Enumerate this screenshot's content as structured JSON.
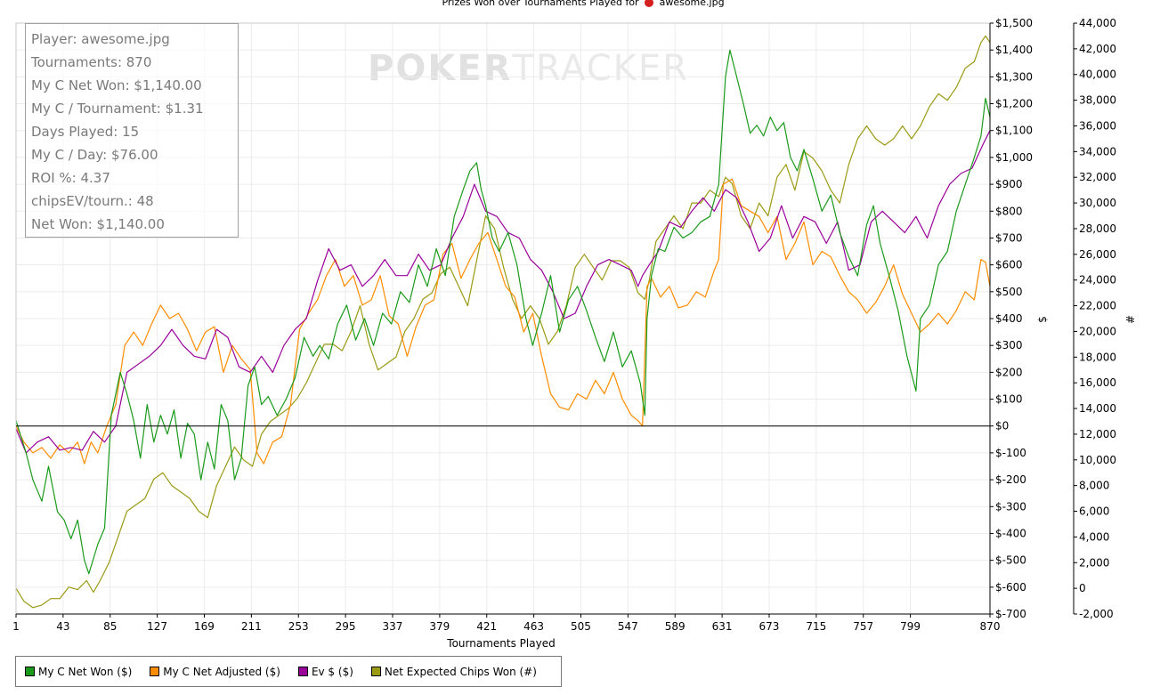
{
  "chart_title_prefix": "Prizes Won over Tournaments Played for",
  "chart_title_player": "awesome.jpg",
  "watermark": {
    "part1": "POKER",
    "part2": "TRACKER"
  },
  "stats": [
    "Player: awesome.jpg",
    "Tournaments: 870",
    "My C Net Won: $1,140.00",
    "My C / Tournament: $1.31",
    "Days Played: 15",
    "My C / Day: $76.00",
    "ROI %: 4.37",
    "chipsEV/tourn.: 48",
    "Net Won: $1,140.00"
  ],
  "legend": [
    {
      "label": "My C Net Won ($)",
      "color": "#1a9a1a"
    },
    {
      "label": "My C Net Adjusted ($)",
      "color": "#ff8c00"
    },
    {
      "label": "Ev $ ($)",
      "color": "#9a009a"
    },
    {
      "label": "Net Expected Chips Won (#)",
      "color": "#9a9a14"
    }
  ],
  "chart_data": {
    "type": "line",
    "title": "Prizes Won over Tournaments Played for awesome.jpg",
    "xlabel": "Tournaments Played",
    "ylabel_left": "$",
    "ylabel_right": "#",
    "xlim": [
      1,
      870
    ],
    "ylim_left": [
      -700,
      1500
    ],
    "ylim_right": [
      -2000,
      44000
    ],
    "x_ticks": [
      1,
      43,
      85,
      127,
      169,
      211,
      253,
      295,
      337,
      379,
      421,
      463,
      505,
      547,
      589,
      631,
      673,
      715,
      757,
      799,
      870
    ],
    "y_ticks_left": [
      -700,
      -600,
      -500,
      -400,
      -300,
      -200,
      -100,
      0,
      100,
      200,
      300,
      400,
      500,
      600,
      700,
      800,
      900,
      1000,
      1100,
      1200,
      1300,
      1400,
      1500
    ],
    "y_tick_labels_left": [
      "$-700",
      "$-600",
      "$-500",
      "$-400",
      "$-300",
      "$-200",
      "$-100",
      "$0",
      "$100",
      "$200",
      "$300",
      "$400",
      "$500",
      "$600",
      "$700",
      "$800",
      "$900",
      "$1,000",
      "$1,100",
      "$1,200",
      "$1,300",
      "$1,400",
      "$1,500"
    ],
    "y_ticks_right": [
      -2000,
      0,
      2000,
      4000,
      6000,
      8000,
      10000,
      12000,
      14000,
      16000,
      18000,
      20000,
      22000,
      24000,
      26000,
      28000,
      30000,
      32000,
      34000,
      36000,
      38000,
      40000,
      42000,
      44000
    ],
    "y_tick_labels_right": [
      "-2,000",
      "0",
      "2,000",
      "4,000",
      "6,000",
      "8,000",
      "10,000",
      "12,000",
      "14,000",
      "16,000",
      "18,000",
      "20,000",
      "22,000",
      "24,000",
      "26,000",
      "28,000",
      "30,000",
      "32,000",
      "34,000",
      "36,000",
      "38,000",
      "40,000",
      "42,000",
      "44,000"
    ],
    "grid": true,
    "legend_position": "bottom-left",
    "series": [
      {
        "name": "My C Net Won ($)",
        "axis": "left",
        "color": "#1a9a1a",
        "x": [
          1,
          10,
          16,
          24,
          30,
          38,
          44,
          50,
          56,
          62,
          66,
          74,
          80,
          86,
          94,
          100,
          106,
          112,
          118,
          124,
          130,
          136,
          142,
          148,
          154,
          160,
          166,
          172,
          178,
          184,
          190,
          196,
          202,
          208,
          214,
          220,
          226,
          234,
          242,
          250,
          258,
          266,
          272,
          280,
          288,
          296,
          304,
          312,
          320,
          328,
          336,
          344,
          352,
          360,
          368,
          376,
          384,
          392,
          400,
          406,
          412,
          416,
          420,
          426,
          432,
          440,
          448,
          456,
          462,
          470,
          478,
          486,
          494,
          502,
          510,
          518,
          526,
          534,
          542,
          550,
          558,
          562,
          564,
          568,
          574,
          580,
          588,
          596,
          604,
          612,
          620,
          628,
          634,
          638,
          644,
          650,
          656,
          662,
          668,
          674,
          680,
          686,
          692,
          698,
          704,
          712,
          720,
          728,
          736,
          744,
          752,
          760,
          766,
          772,
          780,
          788,
          796,
          804,
          808,
          816,
          824,
          832,
          840,
          848,
          856,
          862,
          866,
          870
        ],
        "y": [
          20,
          -100,
          -200,
          -280,
          -150,
          -320,
          -350,
          -420,
          -350,
          -500,
          -550,
          -440,
          -380,
          40,
          200,
          120,
          20,
          -120,
          80,
          -60,
          40,
          -30,
          60,
          -120,
          10,
          -30,
          -200,
          -60,
          -160,
          80,
          20,
          -200,
          -120,
          150,
          220,
          80,
          110,
          40,
          100,
          180,
          330,
          260,
          300,
          250,
          380,
          450,
          320,
          400,
          300,
          420,
          380,
          500,
          460,
          600,
          520,
          660,
          560,
          780,
          880,
          950,
          980,
          880,
          820,
          700,
          650,
          720,
          600,
          400,
          300,
          420,
          560,
          350,
          470,
          520,
          430,
          330,
          240,
          350,
          220,
          280,
          160,
          40,
          400,
          560,
          660,
          650,
          740,
          700,
          720,
          760,
          780,
          900,
          1300,
          1400,
          1300,
          1200,
          1090,
          1120,
          1080,
          1150,
          1100,
          1130,
          1000,
          950,
          1030,
          920,
          800,
          860,
          720,
          630,
          560,
          750,
          820,
          680,
          560,
          430,
          260,
          130,
          400,
          450,
          600,
          650,
          800,
          900,
          1000,
          1080,
          1220,
          1150
        ]
      },
      {
        "name": "My C Net Adjusted ($)",
        "axis": "left",
        "color": "#ff8c00",
        "x": [
          1,
          8,
          16,
          24,
          32,
          40,
          48,
          56,
          62,
          68,
          74,
          82,
          90,
          98,
          106,
          114,
          122,
          130,
          138,
          146,
          154,
          162,
          170,
          178,
          186,
          194,
          202,
          210,
          216,
          222,
          230,
          238,
          246,
          254,
          262,
          270,
          278,
          286,
          294,
          302,
          310,
          318,
          326,
          334,
          342,
          350,
          358,
          366,
          374,
          382,
          390,
          398,
          406,
          414,
          422,
          430,
          438,
          446,
          454,
          462,
          470,
          478,
          486,
          494,
          502,
          510,
          518,
          526,
          534,
          542,
          550,
          556,
          560,
          564,
          568,
          576,
          584,
          592,
          600,
          608,
          616,
          624,
          628,
          632,
          640,
          648,
          656,
          664,
          672,
          680,
          688,
          696,
          704,
          712,
          720,
          728,
          736,
          744,
          752,
          760,
          768,
          776,
          784,
          792,
          800,
          808,
          816,
          824,
          832,
          840,
          848,
          856,
          862,
          866,
          870
        ],
        "y": [
          0,
          -60,
          -100,
          -80,
          -120,
          -70,
          -100,
          -60,
          -140,
          -60,
          -100,
          0,
          80,
          300,
          350,
          300,
          380,
          450,
          400,
          420,
          360,
          280,
          350,
          370,
          200,
          300,
          250,
          210,
          -100,
          -140,
          -60,
          -40,
          80,
          360,
          420,
          470,
          560,
          620,
          520,
          560,
          450,
          470,
          560,
          410,
          380,
          260,
          370,
          450,
          470,
          640,
          680,
          550,
          620,
          680,
          720,
          620,
          520,
          480,
          350,
          420,
          260,
          120,
          70,
          60,
          120,
          100,
          170,
          120,
          200,
          100,
          40,
          20,
          0,
          520,
          550,
          480,
          520,
          440,
          450,
          500,
          480,
          580,
          620,
          900,
          920,
          820,
          800,
          780,
          720,
          780,
          620,
          680,
          760,
          600,
          650,
          630,
          560,
          500,
          470,
          420,
          460,
          520,
          600,
          490,
          420,
          350,
          380,
          420,
          380,
          430,
          500,
          470,
          620,
          610,
          520
        ]
      },
      {
        "name": "Ev $ ($)",
        "axis": "left",
        "color": "#9a009a",
        "x": [
          1,
          10,
          20,
          30,
          40,
          50,
          60,
          70,
          80,
          90,
          100,
          110,
          120,
          130,
          140,
          150,
          160,
          170,
          180,
          190,
          200,
          210,
          220,
          230,
          240,
          250,
          260,
          270,
          280,
          290,
          300,
          310,
          320,
          330,
          340,
          350,
          360,
          370,
          380,
          390,
          400,
          410,
          420,
          430,
          440,
          450,
          460,
          470,
          480,
          490,
          500,
          510,
          520,
          530,
          540,
          550,
          556,
          560,
          566,
          574,
          584,
          594,
          604,
          614,
          624,
          634,
          644,
          654,
          664,
          674,
          684,
          694,
          704,
          714,
          724,
          734,
          744,
          754,
          764,
          774,
          784,
          794,
          804,
          814,
          824,
          834,
          844,
          854,
          864,
          870
        ],
        "y": [
          -10,
          -100,
          -60,
          -40,
          -90,
          -80,
          -90,
          -20,
          -60,
          0,
          200,
          230,
          260,
          300,
          360,
          300,
          260,
          250,
          360,
          330,
          220,
          200,
          260,
          200,
          300,
          360,
          400,
          540,
          660,
          580,
          600,
          520,
          560,
          620,
          560,
          560,
          640,
          580,
          600,
          700,
          780,
          900,
          800,
          780,
          720,
          700,
          620,
          580,
          500,
          400,
          420,
          520,
          600,
          620,
          600,
          580,
          520,
          560,
          600,
          650,
          760,
          740,
          800,
          850,
          800,
          880,
          850,
          760,
          650,
          700,
          820,
          700,
          780,
          760,
          680,
          760,
          580,
          600,
          760,
          800,
          760,
          720,
          780,
          700,
          820,
          900,
          940,
          960,
          1050,
          1100
        ]
      },
      {
        "name": "Net Expected Chips Won (#)",
        "axis": "right",
        "color": "#9a9a14",
        "x": [
          1,
          8,
          16,
          24,
          32,
          40,
          48,
          56,
          64,
          70,
          76,
          84,
          92,
          100,
          108,
          116,
          124,
          132,
          140,
          148,
          156,
          164,
          172,
          180,
          188,
          196,
          204,
          212,
          220,
          228,
          236,
          244,
          252,
          260,
          268,
          276,
          284,
          292,
          300,
          308,
          316,
          324,
          332,
          340,
          348,
          356,
          364,
          372,
          380,
          388,
          396,
          404,
          412,
          420,
          428,
          436,
          444,
          452,
          460,
          468,
          476,
          484,
          492,
          500,
          508,
          516,
          524,
          532,
          540,
          548,
          556,
          562,
          566,
          572,
          580,
          588,
          596,
          604,
          612,
          620,
          628,
          634,
          640,
          648,
          656,
          664,
          672,
          680,
          688,
          696,
          704,
          712,
          720,
          728,
          736,
          744,
          752,
          760,
          768,
          776,
          784,
          792,
          800,
          808,
          816,
          824,
          832,
          840,
          848,
          856,
          862,
          866,
          870
        ],
        "y": [
          0,
          -1000,
          -1500,
          -1300,
          -800,
          -800,
          100,
          -100,
          600,
          -300,
          600,
          2000,
          4000,
          6000,
          6500,
          7000,
          8500,
          9000,
          8000,
          7500,
          7000,
          6000,
          5500,
          8000,
          9500,
          11000,
          10000,
          9500,
          12000,
          13000,
          13500,
          14000,
          14800,
          16000,
          17500,
          19000,
          19000,
          18500,
          20000,
          22000,
          19000,
          17000,
          17500,
          18000,
          20000,
          21000,
          22500,
          23000,
          24500,
          25000,
          23500,
          22000,
          25500,
          29000,
          28000,
          25000,
          22500,
          21000,
          22000,
          21000,
          19000,
          20000,
          22000,
          25000,
          26000,
          25000,
          24000,
          25500,
          25500,
          25000,
          23000,
          22500,
          24000,
          27000,
          28000,
          29000,
          28000,
          30000,
          30000,
          31000,
          30500,
          32000,
          31500,
          29000,
          28000,
          30000,
          29000,
          32000,
          33000,
          31000,
          34000,
          33500,
          32500,
          31000,
          30000,
          33000,
          35000,
          36000,
          35000,
          34500,
          35000,
          36000,
          35000,
          36000,
          37500,
          38500,
          38000,
          39000,
          40500,
          41000,
          42500,
          43000,
          42500
        ]
      }
    ]
  }
}
